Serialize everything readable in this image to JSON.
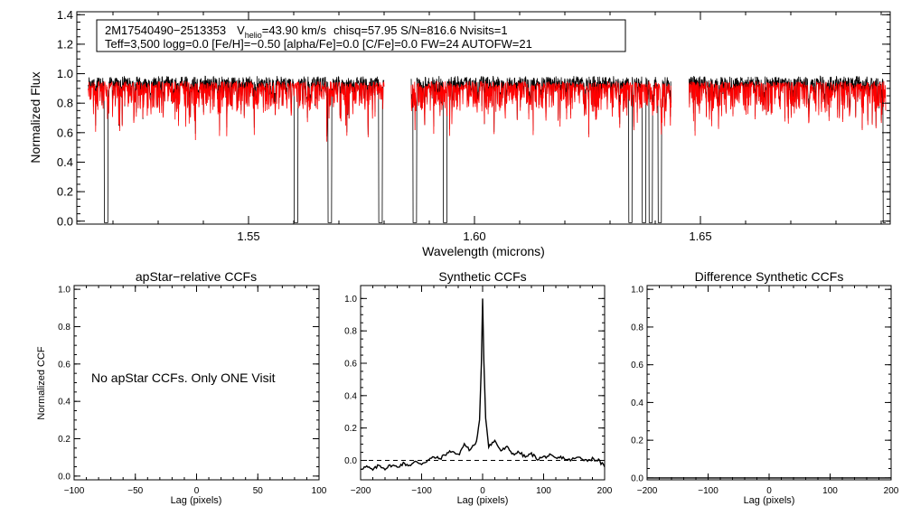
{
  "chart_data": [
    {
      "type": "line",
      "id": "spectrum",
      "title": "",
      "xlabel": "Wavelength (microns)",
      "ylabel": "Normalized Flux",
      "xlim": [
        1.512,
        1.692
      ],
      "ylim": [
        -0.02,
        1.42
      ],
      "xticks": [
        1.55,
        1.6,
        1.65
      ],
      "xtick_labels": [
        "1.55",
        "1.60",
        "1.65"
      ],
      "yticks": [
        0.0,
        0.2,
        0.4,
        0.6,
        0.8,
        1.0,
        1.2,
        1.4
      ],
      "ytick_labels": [
        "0.0",
        "0.2",
        "0.4",
        "0.6",
        "0.8",
        "1.0",
        "1.2",
        "1.4"
      ],
      "annotation": {
        "line1": {
          "star": "2M17540490−2513353",
          "v": "V",
          "v_sub": "helio",
          "v_value": "=43.90 km/s",
          "rest": "chisq=57.95  S/N=816.6  Nvisits=1"
        },
        "line2": "Teff=3,500 logg=0.0 [Fe/H]=−0.50 [alpha/Fe]=0.0 [C/Fe]=0.0 FW=24 AUTOFW=21"
      },
      "chips": [
        [
          1.5145,
          1.58
        ],
        [
          1.586,
          1.6435
        ],
        [
          1.6475,
          1.691
        ]
      ],
      "series": [
        {
          "name": "observed",
          "color": "#000000",
          "deep_lines": [
            1.5185,
            1.5605,
            1.568,
            1.5792,
            1.5868,
            1.5935,
            1.6345,
            1.6375,
            1.639,
            1.641,
            1.6908
          ]
        },
        {
          "name": "model",
          "color": "#ff0000"
        }
      ]
    },
    {
      "type": "line",
      "id": "apstar_ccf",
      "title": "apStar−relative CCFs",
      "xlabel": "Lag (pixels)",
      "ylabel": "Normalized CCF",
      "xlim": [
        -100,
        100
      ],
      "ylim": [
        -0.02,
        1.02
      ],
      "xticks": [
        -100,
        -50,
        0,
        50,
        100
      ],
      "xtick_labels": [
        "−100",
        "−50",
        "0",
        "50",
        "100"
      ],
      "yticks": [
        0.0,
        0.2,
        0.4,
        0.6,
        0.8,
        1.0
      ],
      "ytick_labels": [
        "0.0",
        "0.2",
        "0.4",
        "0.6",
        "0.8",
        "1.0"
      ],
      "message": "No apStar CCFs.  Only ONE Visit",
      "series": []
    },
    {
      "type": "line",
      "id": "synthetic_ccf",
      "title": "Synthetic CCFs",
      "xlabel": "Lag (pixels)",
      "ylabel": "",
      "xlim": [
        -200,
        200
      ],
      "ylim": [
        -0.12,
        1.08
      ],
      "xticks": [
        -200,
        -100,
        0,
        100,
        200
      ],
      "xtick_labels": [
        "−200",
        "−100",
        "0",
        "100",
        "200"
      ],
      "yticks": [
        0.0,
        0.2,
        0.4,
        0.6,
        0.8,
        1.0
      ],
      "ytick_labels": [
        "0.0",
        "0.2",
        "0.4",
        "0.6",
        "0.8",
        "1.0"
      ],
      "baseline": 0.0,
      "series": [
        {
          "name": "ccf",
          "color": "#000000",
          "x": [
            -200,
            -190,
            -180,
            -170,
            -160,
            -150,
            -140,
            -130,
            -120,
            -110,
            -100,
            -90,
            -80,
            -70,
            -60,
            -50,
            -40,
            -30,
            -20,
            -10,
            -5,
            -2,
            0,
            2,
            5,
            10,
            20,
            30,
            40,
            50,
            60,
            70,
            80,
            90,
            100,
            110,
            120,
            130,
            140,
            150,
            160,
            170,
            180,
            190,
            200
          ],
          "y": [
            -0.05,
            -0.04,
            -0.06,
            -0.03,
            -0.05,
            -0.03,
            -0.04,
            -0.02,
            -0.03,
            -0.01,
            -0.02,
            0.0,
            0.02,
            0.01,
            0.04,
            0.06,
            0.03,
            0.1,
            0.06,
            0.12,
            0.25,
            0.6,
            1.0,
            0.62,
            0.26,
            0.09,
            0.12,
            0.06,
            0.08,
            0.04,
            0.05,
            0.02,
            0.04,
            0.01,
            0.02,
            0.03,
            0.01,
            0.02,
            0.0,
            0.01,
            0.02,
            0.0,
            0.01,
            0.0,
            -0.04
          ]
        }
      ]
    },
    {
      "type": "line",
      "id": "diff_ccf",
      "title": "Difference Synthetic CCFs",
      "xlabel": "Lag (pixels)",
      "ylabel": "",
      "xlim": [
        -200,
        200
      ],
      "ylim": [
        -0.01,
        1.02
      ],
      "xticks": [
        -200,
        -100,
        0,
        100,
        200
      ],
      "xtick_labels": [
        "−200",
        "−100",
        "0",
        "100",
        "200"
      ],
      "yticks": [
        0.0,
        0.2,
        0.4,
        0.6,
        0.8,
        1.0
      ],
      "ytick_labels": [
        "0.0",
        "0.2",
        "0.4",
        "0.6",
        "0.8",
        "1.0"
      ],
      "series": [
        {
          "name": "diff",
          "color": "#000000",
          "x": [
            -200,
            200
          ],
          "y": [
            0.0,
            0.0
          ]
        }
      ]
    }
  ]
}
